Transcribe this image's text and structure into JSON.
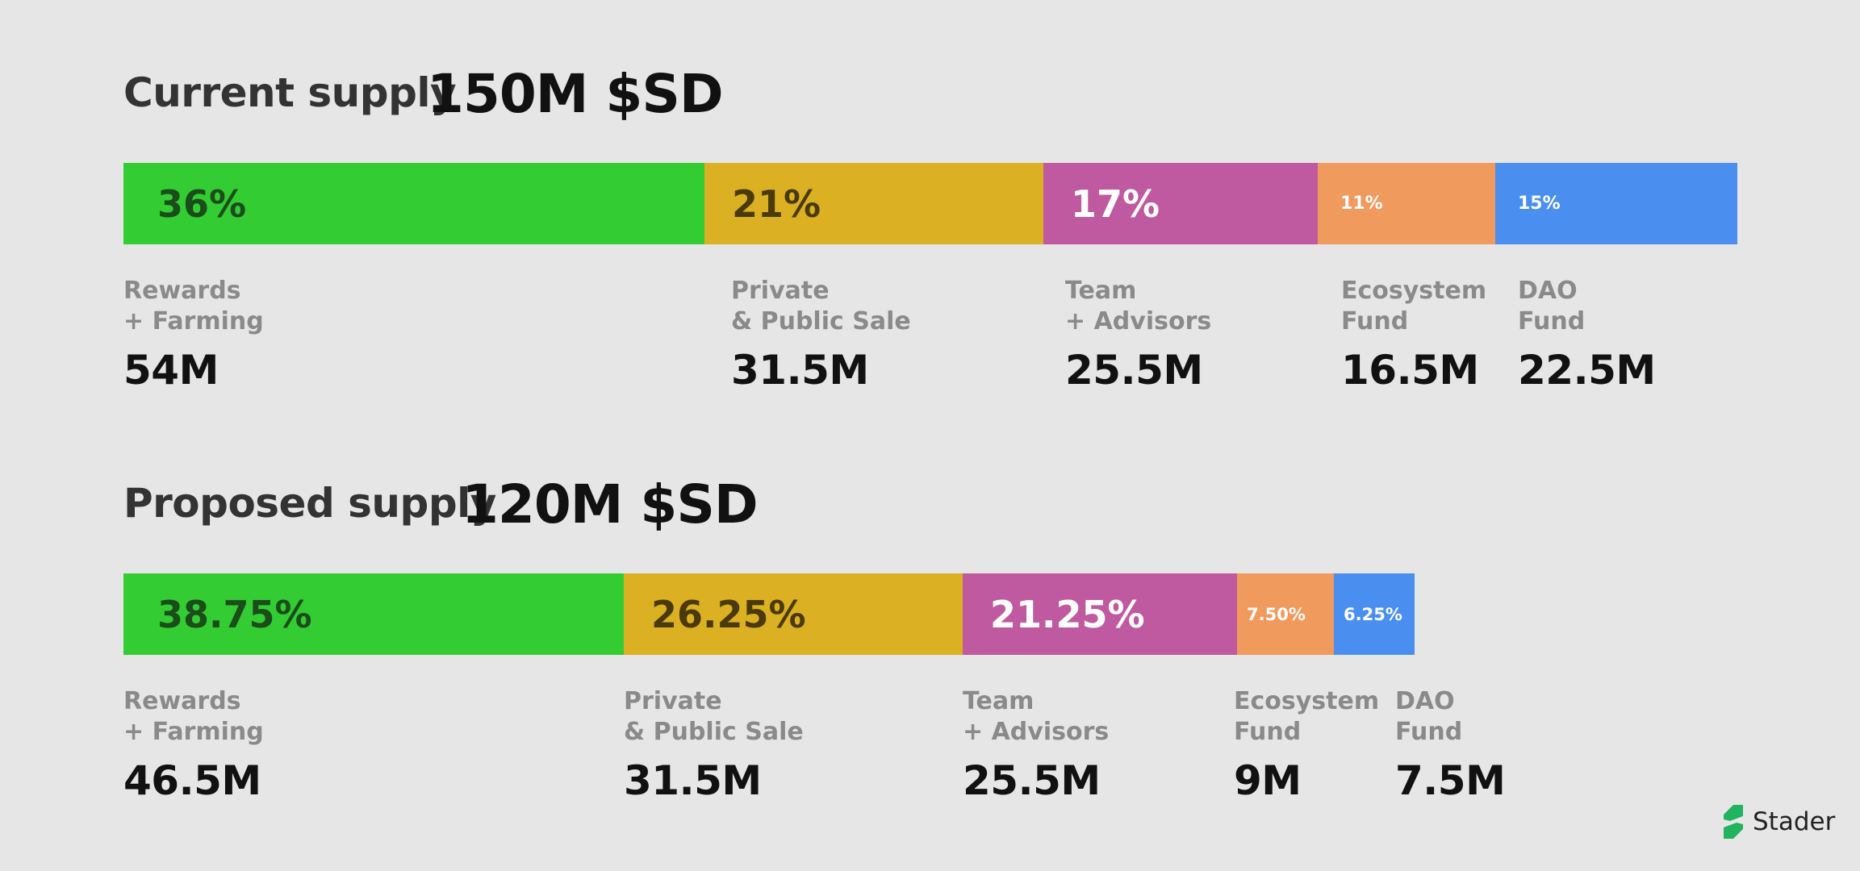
{
  "chart_data": [
    {
      "type": "stacked-bar",
      "title": "Current supply",
      "total": "150M $SD",
      "total_value": 150,
      "series": [
        {
          "name_line1": "Rewards",
          "name_line2": "+ Farming",
          "percent_label": "36%",
          "percent": 36,
          "amount": "54M",
          "value": 54,
          "color": "#33cc33",
          "text_color": "#1a4d1a"
        },
        {
          "name_line1": "Private",
          "name_line2": "& Public Sale",
          "percent_label": "21%",
          "percent": 21,
          "amount": "31.5M",
          "value": 31.5,
          "color": "#dbb022",
          "text_color": "#4a3a0a"
        },
        {
          "name_line1": "Team",
          "name_line2": "+ Advisors",
          "percent_label": "17%",
          "percent": 17,
          "amount": "25.5M",
          "value": 25.5,
          "color": "#c05aa0",
          "text_color": "#ffffff"
        },
        {
          "name_line1": "Ecosystem",
          "name_line2": "Fund",
          "percent_label": "11%",
          "percent": 11,
          "amount": "16.5M",
          "value": 16.5,
          "color": "#f09a5e",
          "text_color": "#ffffff"
        },
        {
          "name_line1": "DAO",
          "name_line2": "Fund",
          "percent_label": "15%",
          "percent": 15,
          "amount": "22.5M",
          "value": 22.5,
          "color": "#4a8ff0",
          "text_color": "#ffffff"
        }
      ]
    },
    {
      "type": "stacked-bar",
      "title": "Proposed supply",
      "total": "120M $SD",
      "total_value": 120,
      "series": [
        {
          "name_line1": "Rewards",
          "name_line2": "+ Farming",
          "percent_label": "38.75%",
          "percent": 38.75,
          "amount": "46.5M",
          "value": 46.5,
          "color": "#33cc33",
          "text_color": "#1a4d1a"
        },
        {
          "name_line1": "Private",
          "name_line2": "& Public Sale",
          "percent_label": "26.25%",
          "percent": 26.25,
          "amount": "31.5M",
          "value": 31.5,
          "color": "#dbb022",
          "text_color": "#4a3a0a"
        },
        {
          "name_line1": "Team",
          "name_line2": "+ Advisors",
          "percent_label": "21.25%",
          "percent": 21.25,
          "amount": "25.5M",
          "value": 25.5,
          "color": "#c05aa0",
          "text_color": "#ffffff"
        },
        {
          "name_line1": "Ecosystem",
          "name_line2": "Fund",
          "percent_label": "7.50%",
          "percent": 7.5,
          "amount": "9M",
          "value": 9,
          "color": "#f09a5e",
          "text_color": "#ffffff"
        },
        {
          "name_line1": "DAO",
          "name_line2": "Fund",
          "percent_label": "6.25%",
          "percent": 6.25,
          "amount": "7.5M",
          "value": 7.5,
          "color": "#4a8ff0",
          "text_color": "#ffffff"
        }
      ]
    }
  ],
  "logo": {
    "brand": "Stader",
    "color": "#22b35e"
  }
}
